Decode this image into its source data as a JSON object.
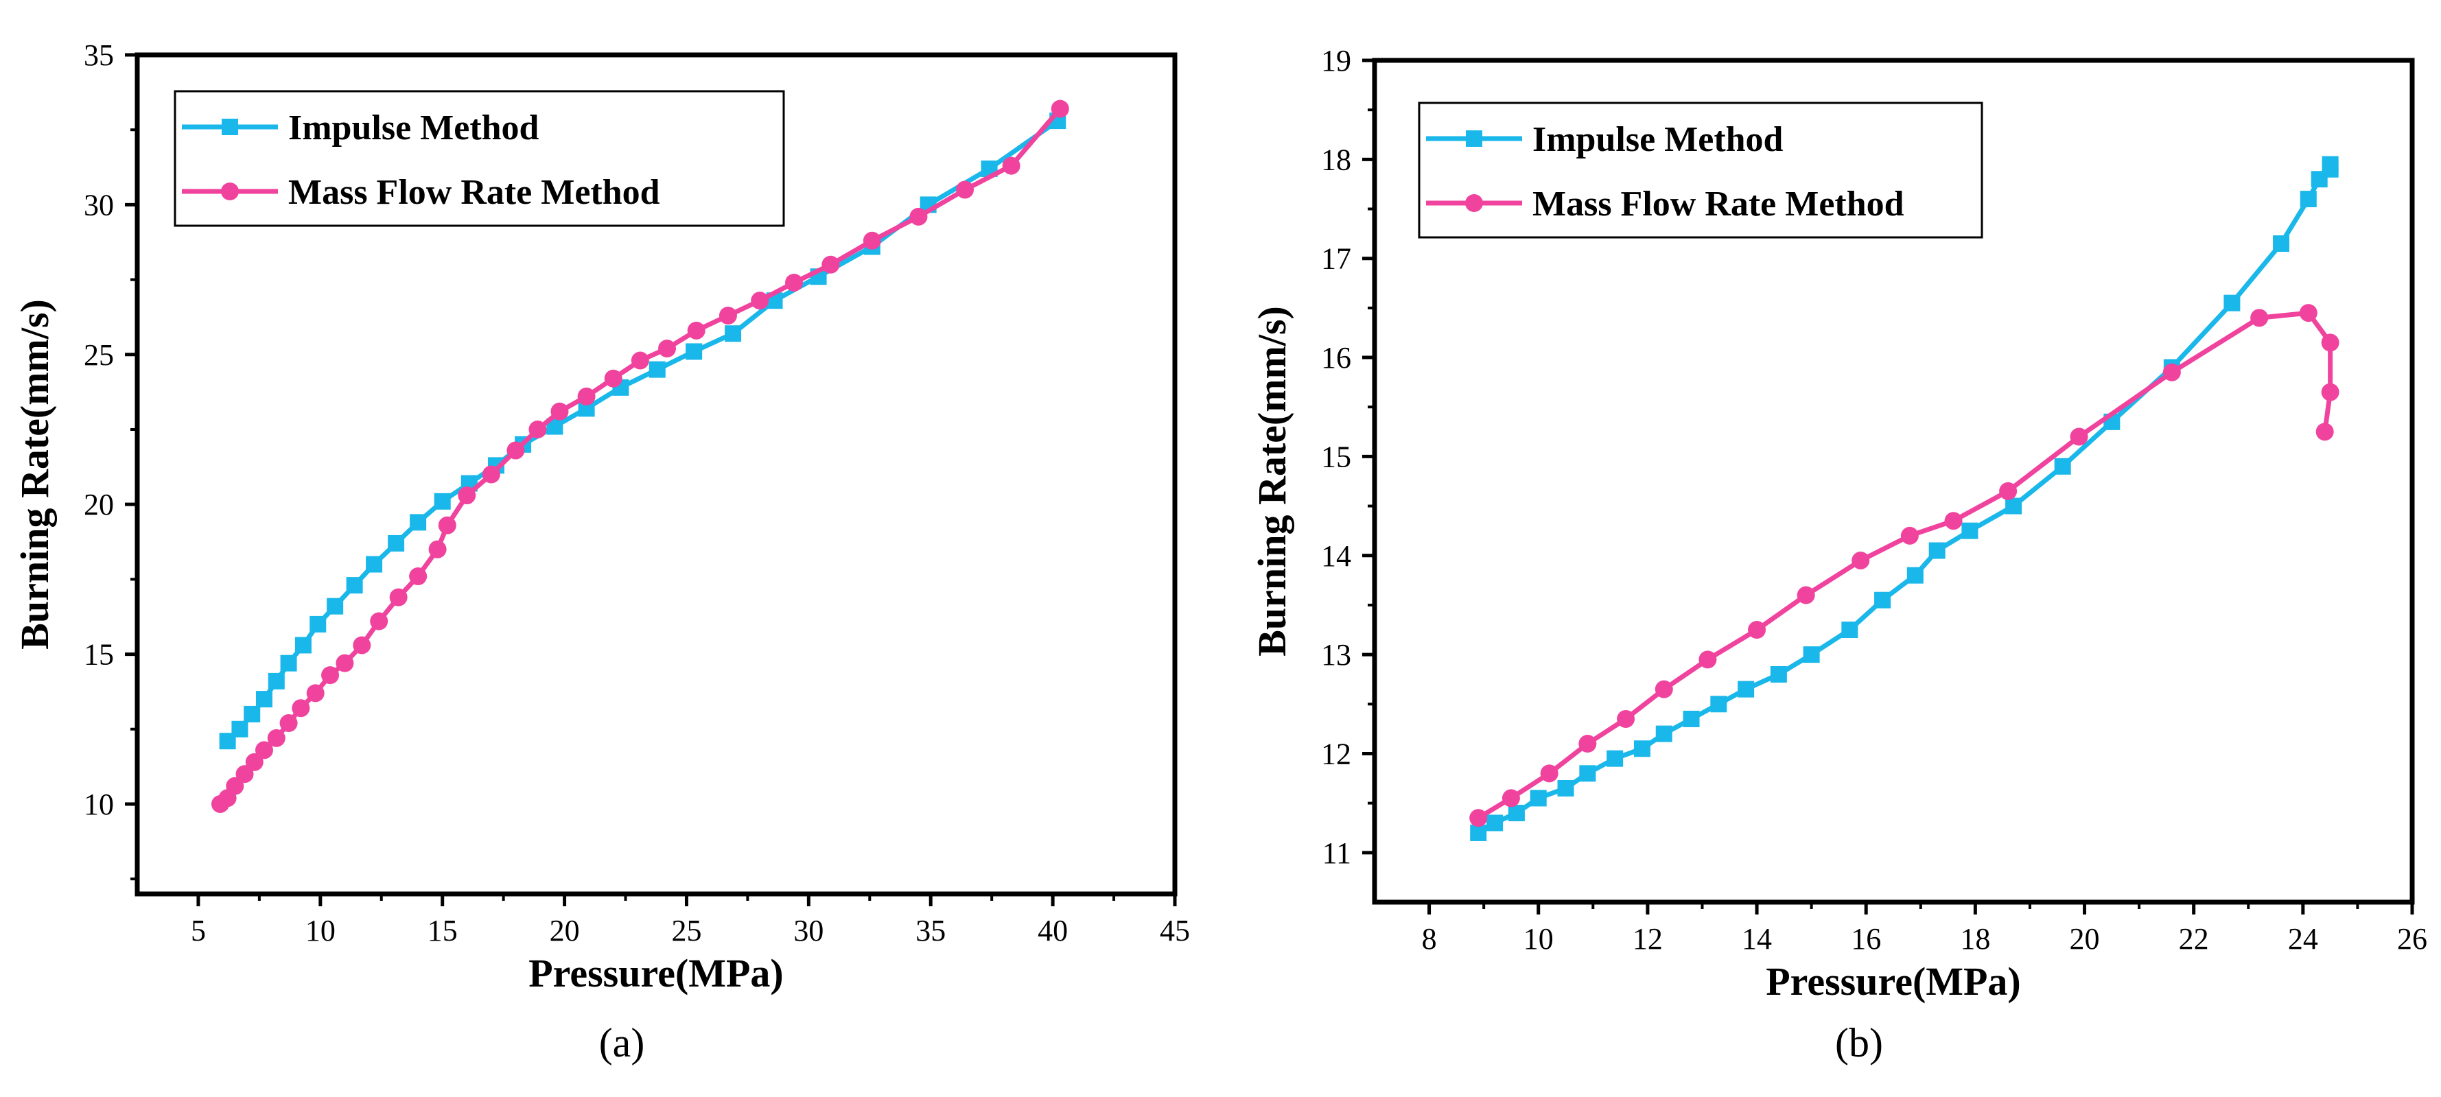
{
  "colors": {
    "impulse": "#1AB7EA",
    "massflow": "#F0439E",
    "axis": "#000000",
    "background": "#FFFFFF"
  },
  "chart_data": [
    {
      "type": "line",
      "panel_label": "(a)",
      "xlabel": "Pressure(MPa)",
      "ylabel": "Burning Rate(mm/s)",
      "xlim": [
        2.5,
        45
      ],
      "ylim": [
        7,
        35
      ],
      "xticks": [
        "5",
        "10",
        "15",
        "20",
        "25",
        "30",
        "35",
        "40",
        "45"
      ],
      "yticks": [
        "10",
        "15",
        "20",
        "25",
        "30",
        "35"
      ],
      "legend_position": "top-left",
      "series": [
        {
          "name": "Impulse Method",
          "marker": "square",
          "color": "#1AB7EA",
          "x": [
            6.2,
            6.7,
            7.2,
            7.7,
            8.2,
            8.7,
            9.3,
            9.9,
            10.6,
            11.4,
            12.2,
            13.1,
            14.0,
            15.0,
            16.1,
            17.2,
            18.3,
            19.6,
            20.9,
            22.3,
            23.8,
            25.3,
            26.9,
            28.6,
            30.4,
            32.6,
            34.9,
            37.4,
            40.2
          ],
          "y": [
            12.1,
            12.5,
            13.0,
            13.5,
            14.1,
            14.7,
            15.3,
            16.0,
            16.6,
            17.3,
            18.0,
            18.7,
            19.4,
            20.1,
            20.7,
            21.3,
            22.0,
            22.6,
            23.2,
            23.9,
            24.5,
            25.1,
            25.7,
            26.8,
            27.6,
            28.6,
            30.0,
            31.2,
            32.8
          ]
        },
        {
          "name": "Mass Flow Rate Method",
          "marker": "circle",
          "color": "#F0439E",
          "x": [
            5.9,
            6.2,
            6.5,
            6.9,
            7.3,
            7.7,
            8.2,
            8.7,
            9.2,
            9.8,
            10.4,
            11.0,
            11.7,
            12.4,
            13.2,
            14.0,
            14.8,
            15.2,
            16.0,
            17.0,
            18.0,
            18.9,
            19.8,
            20.9,
            22.0,
            23.1,
            24.2,
            25.4,
            26.7,
            28.0,
            29.4,
            30.9,
            32.6,
            34.5,
            36.4,
            38.3,
            40.3
          ],
          "y": [
            10.0,
            10.2,
            10.6,
            11.0,
            11.4,
            11.8,
            12.2,
            12.7,
            13.2,
            13.7,
            14.3,
            14.7,
            15.3,
            16.1,
            16.9,
            17.6,
            18.5,
            19.3,
            20.3,
            21.0,
            21.8,
            22.5,
            23.1,
            23.6,
            24.2,
            24.8,
            25.2,
            25.8,
            26.3,
            26.8,
            27.4,
            28.0,
            28.8,
            29.6,
            30.5,
            31.3,
            33.2
          ]
        }
      ]
    },
    {
      "type": "line",
      "panel_label": "(b)",
      "xlabel": "Pressure(MPa)",
      "ylabel": "Burning Rate(mm/s)",
      "xlim": [
        7,
        26
      ],
      "ylim": [
        10.5,
        19
      ],
      "xticks": [
        "8",
        "10",
        "12",
        "14",
        "16",
        "18",
        "20",
        "22",
        "24",
        "26"
      ],
      "yticks": [
        "11",
        "12",
        "13",
        "14",
        "15",
        "16",
        "17",
        "18",
        "19"
      ],
      "legend_position": "top-left",
      "series": [
        {
          "name": "Impulse Method",
          "marker": "square",
          "color": "#1AB7EA",
          "x": [
            8.9,
            9.2,
            9.6,
            10.0,
            10.5,
            10.9,
            11.4,
            11.9,
            12.3,
            12.8,
            13.3,
            13.8,
            14.4,
            15.0,
            15.7,
            16.3,
            16.9,
            17.3,
            17.9,
            18.7,
            19.6,
            20.5,
            21.6,
            22.7,
            23.6,
            24.1,
            24.3,
            24.5,
            24.5
          ],
          "y": [
            11.2,
            11.3,
            11.4,
            11.55,
            11.65,
            11.8,
            11.95,
            12.05,
            12.2,
            12.35,
            12.5,
            12.65,
            12.8,
            13.0,
            13.25,
            13.55,
            13.8,
            14.05,
            14.25,
            14.5,
            14.9,
            15.35,
            15.9,
            16.55,
            17.15,
            17.6,
            17.8,
            17.9,
            17.95
          ]
        },
        {
          "name": "Mass Flow Rate Method",
          "marker": "circle",
          "color": "#F0439E",
          "x": [
            8.9,
            9.5,
            10.2,
            10.9,
            11.6,
            12.3,
            13.1,
            14.0,
            14.9,
            15.9,
            16.8,
            17.6,
            18.6,
            19.9,
            21.6,
            23.2,
            24.1,
            24.5,
            24.5,
            24.4
          ],
          "y": [
            11.35,
            11.55,
            11.8,
            12.1,
            12.35,
            12.65,
            12.95,
            13.25,
            13.6,
            13.95,
            14.2,
            14.35,
            14.65,
            15.2,
            15.85,
            16.4,
            16.45,
            16.15,
            15.65,
            15.25
          ]
        }
      ]
    }
  ]
}
